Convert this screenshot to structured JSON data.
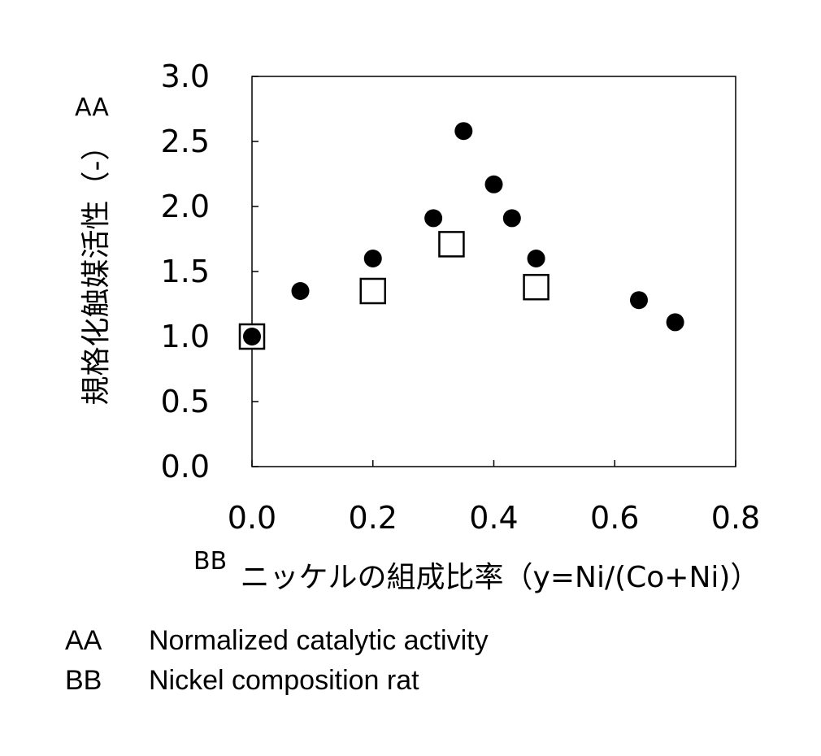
{
  "chart_data": {
    "type": "scatter",
    "ylabel": "規格化触媒活性（-）",
    "ylabel_tag": "AA",
    "xlabel": "ニッケルの組成比率（y=Ni/(Co+Ni)）",
    "xlabel_tag": "BB",
    "xlim": [
      0.0,
      0.8
    ],
    "ylim": [
      0.0,
      3.0
    ],
    "x_ticks": [
      "0.0",
      "0.2",
      "0.4",
      "0.6",
      "0.8"
    ],
    "y_ticks": [
      "0.0",
      "0.5",
      "1.0",
      "1.5",
      "2.0",
      "2.5",
      "3.0"
    ],
    "grid": false,
    "series": [
      {
        "marker": "filled-circle",
        "color": "#000000",
        "points": [
          {
            "x": 0.0,
            "y": 1.0
          },
          {
            "x": 0.08,
            "y": 1.35
          },
          {
            "x": 0.2,
            "y": 1.6
          },
          {
            "x": 0.3,
            "y": 1.91
          },
          {
            "x": 0.35,
            "y": 2.58
          },
          {
            "x": 0.4,
            "y": 2.17
          },
          {
            "x": 0.43,
            "y": 1.91
          },
          {
            "x": 0.47,
            "y": 1.6
          },
          {
            "x": 0.64,
            "y": 1.28
          },
          {
            "x": 0.7,
            "y": 1.11
          }
        ]
      },
      {
        "marker": "open-square",
        "color": "#000000",
        "points": [
          {
            "x": 0.0,
            "y": 1.0
          },
          {
            "x": 0.2,
            "y": 1.35
          },
          {
            "x": 0.33,
            "y": 1.71
          },
          {
            "x": 0.47,
            "y": 1.38
          }
        ]
      }
    ]
  },
  "legend": [
    {
      "code": "AA",
      "text": "Normalized catalytic activity"
    },
    {
      "code": "BB",
      "text": "Nickel composition rat"
    }
  ]
}
